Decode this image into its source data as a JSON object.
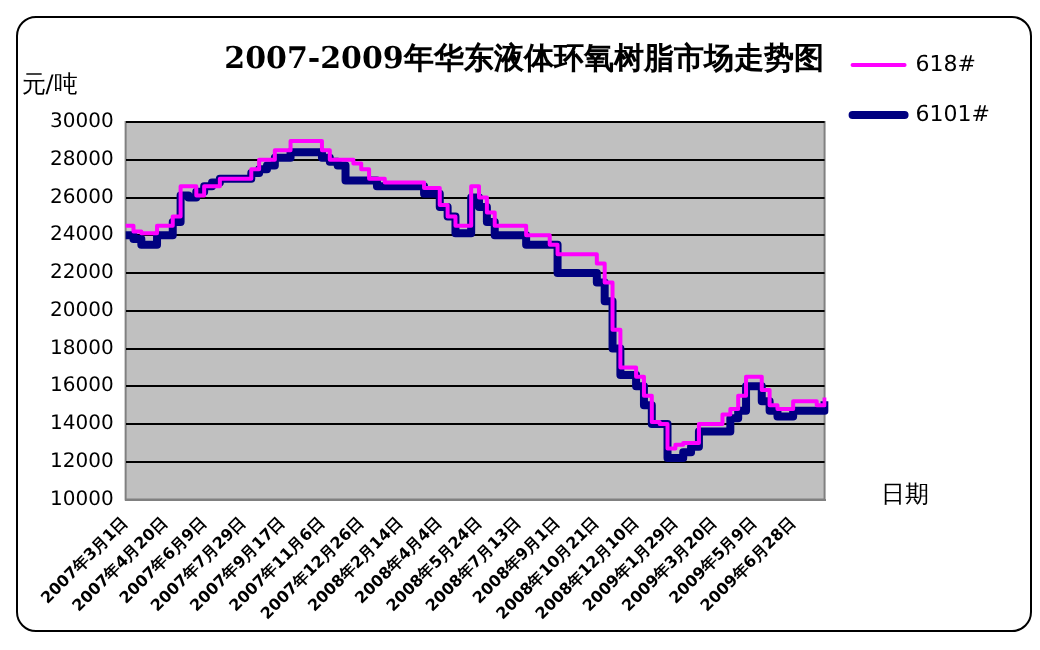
{
  "chart_data": {
    "type": "step",
    "title": "2007-2009年华东液体环氧树脂市场走势图",
    "ylabel": "元/吨",
    "xlabel": "日期",
    "categories": [
      "2007年3月1日",
      null,
      null,
      null,
      null,
      "2007年4月20日",
      null,
      null,
      null,
      null,
      "2007年6月9日",
      null,
      null,
      null,
      null,
      "2007年7月29日",
      null,
      null,
      null,
      null,
      "2007年9月17日",
      null,
      null,
      null,
      null,
      "2007年11月6日",
      null,
      null,
      null,
      null,
      "2007年12月26日",
      null,
      null,
      null,
      null,
      "2008年2月14日",
      null,
      null,
      null,
      null,
      "2008年4月4日",
      null,
      null,
      null,
      null,
      "2008年5月24日",
      null,
      null,
      null,
      null,
      "2008年7月13日",
      null,
      null,
      null,
      null,
      "2008年9月1日",
      null,
      null,
      null,
      null,
      "2008年10月21日",
      null,
      null,
      null,
      null,
      "2008年12月10日",
      null,
      null,
      null,
      null,
      "2009年1月29日",
      null,
      null,
      null,
      null,
      "2009年3月20日",
      null,
      null,
      null,
      null,
      "2009年5月9日",
      null,
      null,
      null,
      null,
      "2009年6月28日",
      null,
      null,
      null,
      null
    ],
    "series": [
      {
        "name": "6101#",
        "color": "#000080",
        "values": [
          24000,
          23800,
          23500,
          23500,
          24000,
          24000,
          24700,
          26100,
          26000,
          26300,
          26600,
          26800,
          27000,
          27000,
          27000,
          27000,
          27300,
          27500,
          27700,
          28100,
          28100,
          28400,
          28400,
          28400,
          28400,
          28100,
          27900,
          27700,
          26900,
          26900,
          26900,
          26900,
          26600,
          26600,
          26600,
          26600,
          26600,
          26600,
          26200,
          26200,
          25500,
          25000,
          24100,
          24100,
          26000,
          25500,
          24700,
          24000,
          24000,
          24000,
          24000,
          23500,
          23500,
          23500,
          23500,
          22000,
          22000,
          22000,
          22000,
          22000,
          21500,
          20500,
          18000,
          16600,
          16600,
          16000,
          15000,
          14000,
          14000,
          12200,
          12200,
          12500,
          12800,
          13600,
          13600,
          13600,
          13600,
          14300,
          14700,
          16000,
          16000,
          15200,
          14700,
          14400,
          14400,
          14700,
          14700,
          14700,
          14700,
          15200
        ]
      },
      {
        "name": "618#",
        "color": "#ff00ff",
        "values": [
          24500,
          24200,
          24100,
          24100,
          24500,
          24500,
          25000,
          26600,
          26600,
          26100,
          26600,
          26600,
          27000,
          27000,
          27000,
          27000,
          27500,
          28000,
          28000,
          28500,
          28500,
          29000,
          29000,
          29000,
          29000,
          28500,
          28000,
          28000,
          28000,
          27800,
          27500,
          27000,
          27000,
          26800,
          26800,
          26800,
          26800,
          26800,
          26500,
          26500,
          25600,
          25000,
          24500,
          24500,
          26600,
          26000,
          25200,
          24500,
          24500,
          24500,
          24500,
          24000,
          24000,
          24000,
          23500,
          23000,
          23000,
          23000,
          23000,
          23000,
          22500,
          21500,
          19000,
          17000,
          17000,
          16500,
          15500,
          14100,
          14000,
          12700,
          12900,
          13000,
          13000,
          14000,
          14000,
          14000,
          14500,
          14800,
          15500,
          16500,
          16500,
          15800,
          15000,
          14800,
          14800,
          15200,
          15200,
          15200,
          15000,
          15400
        ]
      }
    ],
    "ylim": [
      10000,
      30000
    ],
    "yticks": [
      10000,
      12000,
      14000,
      16000,
      18000,
      20000,
      22000,
      24000,
      26000,
      28000,
      30000
    ],
    "grid": "y",
    "legend": "top right"
  }
}
